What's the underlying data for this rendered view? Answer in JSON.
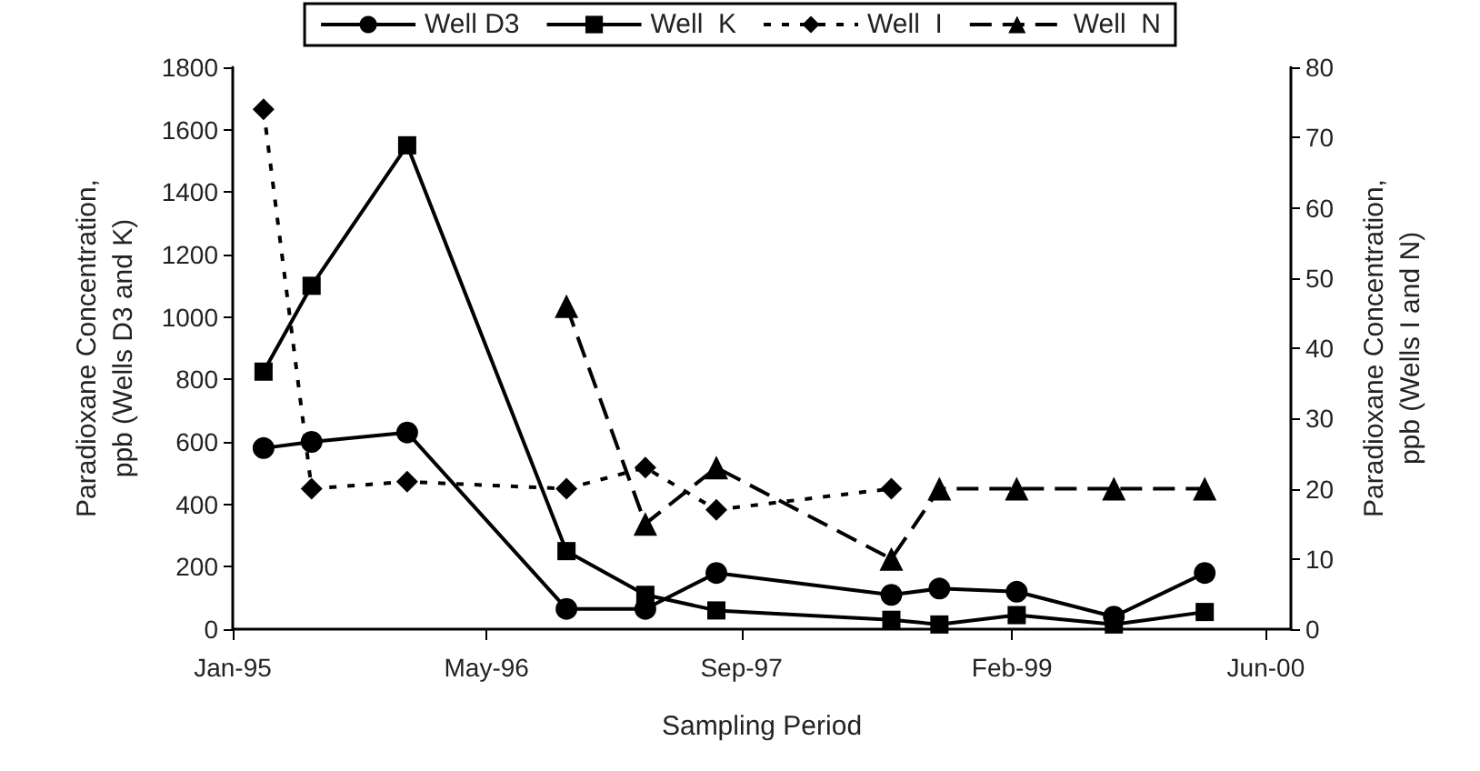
{
  "chart_data": {
    "type": "line",
    "xlabel": "Sampling Period",
    "ylabel": "Paradioxane Concentration, ppb (Wells D3 and K)",
    "y2label": "Paradioxane Concentration, ppb (Wells I and N)",
    "x": [
      "1995-03-01",
      "1995-06-01",
      "1995-12-01",
      "1996-10-01",
      "1997-03-01",
      "1997-07-15",
      "1998-06-15",
      "1998-09-15",
      "1999-02-10",
      "1999-08-15",
      "2000-02-05"
    ],
    "series": [
      {
        "name": "Well D3",
        "color": "#000000",
        "marker": "circle",
        "line_style": "solid",
        "values": [
          580,
          600,
          630,
          65,
          65,
          180,
          110,
          130,
          120,
          40,
          180
        ]
      },
      {
        "name": "Well  K",
        "color": "#000000",
        "marker": "square",
        "line_style": "solid",
        "values": [
          825,
          1100,
          1550,
          250,
          110,
          60,
          30,
          15,
          45,
          15,
          55
        ]
      },
      {
        "name": "Well  I",
        "color": "#000000",
        "marker": "diamond",
        "line_style": "dotted",
        "axis": "y2",
        "values": [
          74,
          20,
          21,
          20,
          23,
          17,
          20,
          null,
          null,
          null,
          null
        ]
      },
      {
        "name": "Well  N",
        "color": "#000000",
        "marker": "triangle",
        "line_style": "dashed",
        "axis": "y2",
        "values": [
          null,
          null,
          null,
          46,
          15,
          23,
          10,
          20,
          20,
          20,
          20
        ]
      }
    ],
    "xlim": [
      "1995-01-01",
      "2000-07-19"
    ],
    "xticks": [
      {
        "value": "1995-01-01",
        "label": "Jan-95"
      },
      {
        "value": "1996-05-01",
        "label": "May-96"
      },
      {
        "value": "1997-09-01",
        "label": "Sep-97"
      },
      {
        "value": "1999-02-01",
        "label": "Feb-99"
      },
      {
        "value": "2000-06-01",
        "label": "Jun-00"
      }
    ],
    "ylim": [
      0,
      1800
    ],
    "yticks": [
      0,
      200,
      400,
      600,
      800,
      1000,
      1200,
      1400,
      1600,
      1800
    ],
    "y2lim": [
      0,
      80
    ],
    "y2ticks": [
      0,
      10,
      20,
      30,
      40,
      50,
      60,
      70,
      80
    ],
    "grid": false,
    "legend": "top"
  }
}
